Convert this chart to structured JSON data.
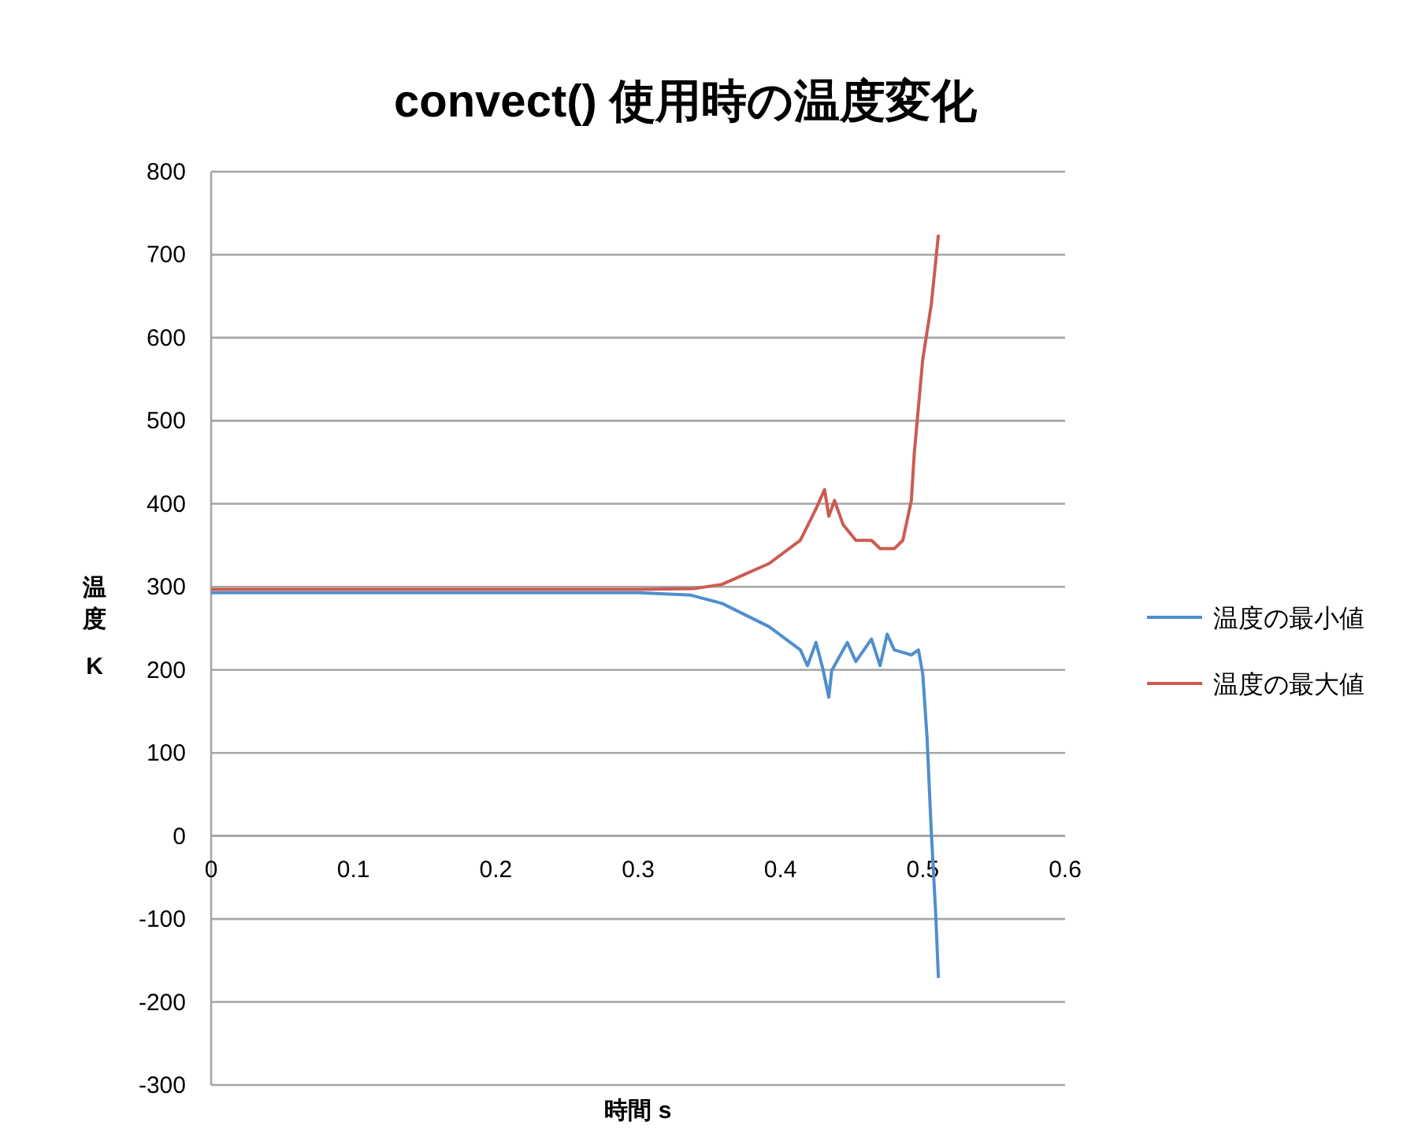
{
  "chart_data": {
    "type": "line",
    "title": "convect() 使用時の温度変化",
    "xlabel": "時間 s",
    "ylabel": "温度 K",
    "xlim": [
      0,
      0.6
    ],
    "xticks": [
      0,
      0.1,
      0.2,
      0.3,
      0.4,
      0.5,
      0.6
    ],
    "ylim": [
      -300,
      800
    ],
    "yticks": [
      -300,
      -200,
      -100,
      0,
      100,
      200,
      300,
      400,
      500,
      600,
      700,
      800
    ],
    "grid": "y",
    "legend": "right",
    "series": [
      {
        "name": "温度の最小値",
        "color": "#4f8fcc",
        "x": [
          0,
          0.3,
          0.337,
          0.359,
          0.392,
          0.414,
          0.419,
          0.425,
          0.43,
          0.434,
          0.436,
          0.447,
          0.453,
          0.464,
          0.47,
          0.475,
          0.48,
          0.492,
          0.497,
          0.5,
          0.503,
          0.506,
          0.509,
          0.511
        ],
        "values": [
          293,
          293,
          290,
          280,
          252,
          224,
          205,
          233,
          200,
          167,
          199,
          233,
          210,
          237,
          205,
          243,
          224,
          218,
          224,
          195,
          119,
          5,
          -90,
          -171
        ]
      },
      {
        "name": "温度の最大値",
        "color": "#cc5b52",
        "x": [
          0,
          0.3,
          0.34,
          0.359,
          0.392,
          0.414,
          0.425,
          0.431,
          0.434,
          0.438,
          0.444,
          0.453,
          0.464,
          0.47,
          0.48,
          0.486,
          0.492,
          0.494,
          0.497,
          0.5,
          0.506,
          0.511
        ],
        "values": [
          297,
          297,
          298,
          303,
          328,
          356,
          394,
          417,
          385,
          404,
          375,
          356,
          356,
          346,
          346,
          356,
          404,
          460,
          517,
          574,
          640,
          724
        ]
      }
    ]
  }
}
